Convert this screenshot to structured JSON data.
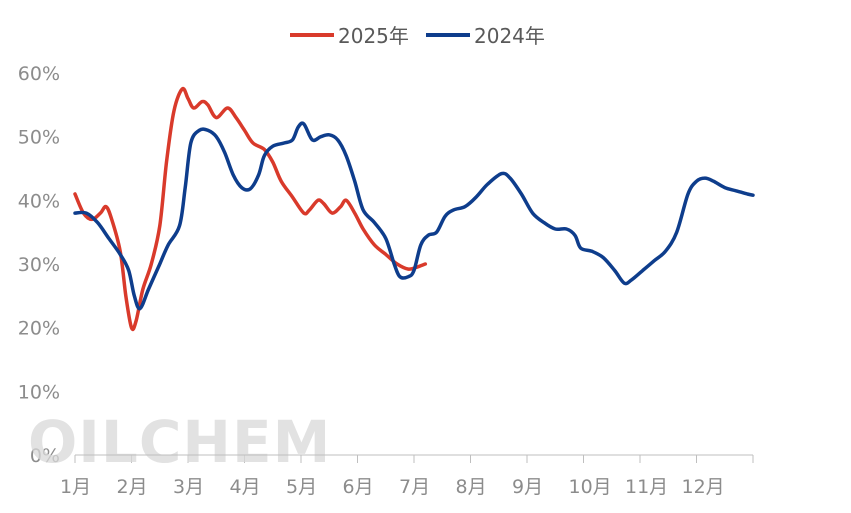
{
  "watermark": "OILCHEM",
  "chart_data": {
    "type": "line",
    "title": "",
    "xlabel": "",
    "ylabel": "",
    "ylim": [
      0,
      60
    ],
    "yticks": [
      "0%",
      "10%",
      "20%",
      "30%",
      "40%",
      "50%",
      "60%"
    ],
    "categories": [
      "1月",
      "2月",
      "3月",
      "4月",
      "5月",
      "6月",
      "7月",
      "8月",
      "9月",
      "10月",
      "11月",
      "12月"
    ],
    "grid": "vertical",
    "legend": "top-center",
    "series": [
      {
        "name": "2025年",
        "color": "#d93a2b",
        "points": [
          [
            0.0,
            41
          ],
          [
            0.15,
            38
          ],
          [
            0.3,
            37
          ],
          [
            0.45,
            38
          ],
          [
            0.55,
            39
          ],
          [
            0.65,
            37
          ],
          [
            0.8,
            32
          ],
          [
            0.9,
            25
          ],
          [
            1.0,
            20
          ],
          [
            1.08,
            21
          ],
          [
            1.2,
            26
          ],
          [
            1.35,
            30
          ],
          [
            1.5,
            36
          ],
          [
            1.62,
            46
          ],
          [
            1.75,
            54
          ],
          [
            1.9,
            57.5
          ],
          [
            2.0,
            56
          ],
          [
            2.1,
            54.5
          ],
          [
            2.25,
            55.5
          ],
          [
            2.35,
            55
          ],
          [
            2.5,
            53
          ],
          [
            2.7,
            54.5
          ],
          [
            2.85,
            53
          ],
          [
            3.0,
            51
          ],
          [
            3.15,
            49
          ],
          [
            3.35,
            48
          ],
          [
            3.5,
            46
          ],
          [
            3.65,
            43
          ],
          [
            3.85,
            40.5
          ],
          [
            4.05,
            38
          ],
          [
            4.15,
            38.5
          ],
          [
            4.3,
            40
          ],
          [
            4.4,
            39.5
          ],
          [
            4.55,
            38
          ],
          [
            4.7,
            39
          ],
          [
            4.8,
            40
          ],
          [
            4.95,
            38
          ],
          [
            5.1,
            35.5
          ],
          [
            5.3,
            33
          ],
          [
            5.5,
            31.5
          ],
          [
            5.7,
            30
          ],
          [
            5.9,
            29.2
          ],
          [
            6.05,
            29.5
          ],
          [
            6.2,
            30
          ]
        ]
      },
      {
        "name": "2024年",
        "color": "#0e3d8c",
        "points": [
          [
            0.0,
            38
          ],
          [
            0.2,
            38
          ],
          [
            0.4,
            36.5
          ],
          [
            0.6,
            34
          ],
          [
            0.8,
            31.5
          ],
          [
            0.95,
            29
          ],
          [
            1.05,
            25
          ],
          [
            1.15,
            23
          ],
          [
            1.3,
            26
          ],
          [
            1.5,
            30
          ],
          [
            1.65,
            33
          ],
          [
            1.85,
            36
          ],
          [
            1.95,
            42
          ],
          [
            2.05,
            49
          ],
          [
            2.2,
            51
          ],
          [
            2.35,
            51
          ],
          [
            2.5,
            50
          ],
          [
            2.65,
            47.5
          ],
          [
            2.8,
            44
          ],
          [
            2.95,
            42
          ],
          [
            3.1,
            41.8
          ],
          [
            3.25,
            44
          ],
          [
            3.35,
            47
          ],
          [
            3.5,
            48.5
          ],
          [
            3.7,
            49
          ],
          [
            3.85,
            49.5
          ],
          [
            3.95,
            51.5
          ],
          [
            4.05,
            52
          ],
          [
            4.2,
            49.5
          ],
          [
            4.35,
            50
          ],
          [
            4.5,
            50.3
          ],
          [
            4.65,
            49.5
          ],
          [
            4.8,
            47
          ],
          [
            4.95,
            43
          ],
          [
            5.1,
            38.5
          ],
          [
            5.3,
            36.5
          ],
          [
            5.5,
            34
          ],
          [
            5.65,
            30
          ],
          [
            5.75,
            28
          ],
          [
            5.9,
            28
          ],
          [
            6.0,
            29
          ],
          [
            6.12,
            33
          ],
          [
            6.25,
            34.5
          ],
          [
            6.4,
            35
          ],
          [
            6.55,
            37.5
          ],
          [
            6.7,
            38.5
          ],
          [
            6.9,
            39
          ],
          [
            7.1,
            40.5
          ],
          [
            7.3,
            42.5
          ],
          [
            7.55,
            44.2
          ],
          [
            7.7,
            43.5
          ],
          [
            7.9,
            41
          ],
          [
            8.1,
            38
          ],
          [
            8.3,
            36.5
          ],
          [
            8.5,
            35.5
          ],
          [
            8.7,
            35.5
          ],
          [
            8.85,
            34.5
          ],
          [
            8.95,
            32.5
          ],
          [
            9.15,
            32
          ],
          [
            9.35,
            31
          ],
          [
            9.55,
            29
          ],
          [
            9.72,
            27
          ],
          [
            9.85,
            27.5
          ],
          [
            10.05,
            29
          ],
          [
            10.25,
            30.5
          ],
          [
            10.45,
            32
          ],
          [
            10.65,
            35
          ],
          [
            10.85,
            41
          ],
          [
            11.0,
            43
          ],
          [
            11.15,
            43.5
          ],
          [
            11.3,
            43
          ],
          [
            11.5,
            42
          ],
          [
            11.7,
            41.5
          ],
          [
            11.9,
            41
          ],
          [
            12.0,
            40.8
          ]
        ]
      }
    ]
  }
}
